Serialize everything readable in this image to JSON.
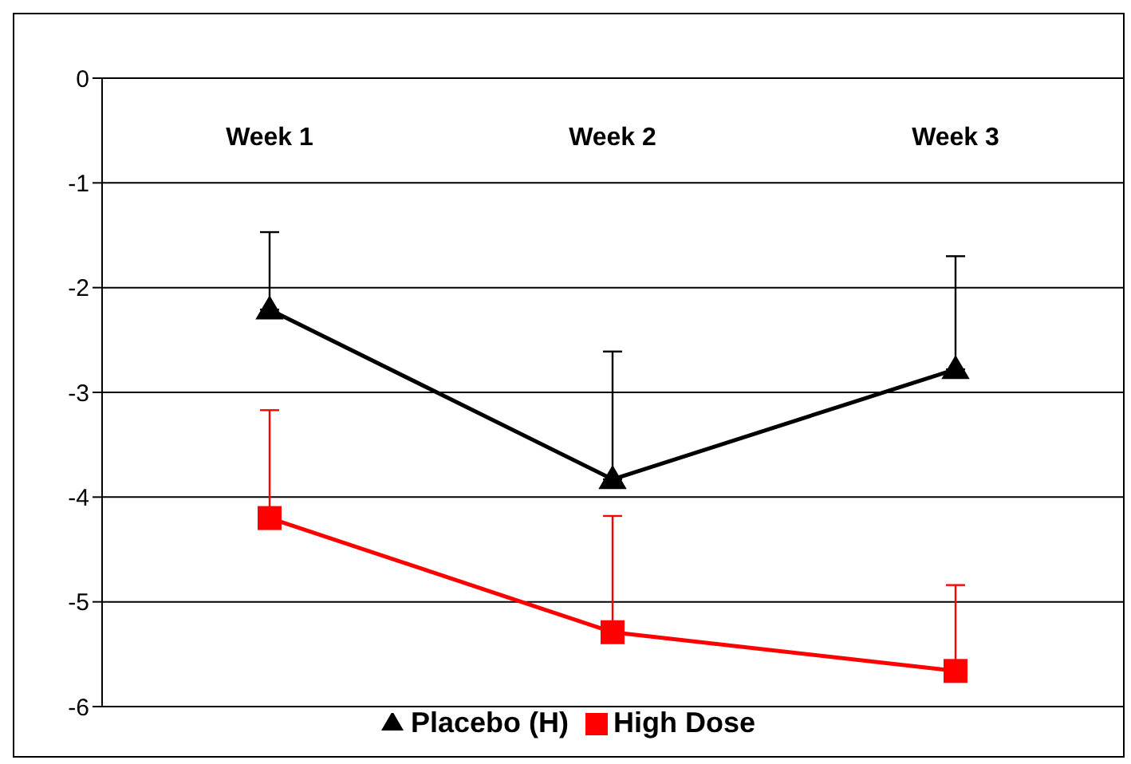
{
  "chart_data": {
    "type": "line",
    "categories": [
      "Week 1",
      "Week 2",
      "Week 3"
    ],
    "series": [
      {
        "name": "Placebo (H)",
        "color": "#000000",
        "marker": "triangle",
        "values": [
          -2.21,
          -3.83,
          -2.78
        ],
        "errors": [
          [
            -2.21,
            -1.47
          ],
          [
            -3.83,
            -2.61
          ],
          [
            -2.78,
            -1.7
          ]
        ]
      },
      {
        "name": "High Dose",
        "color": "#ff0000",
        "marker": "square",
        "values": [
          -4.2,
          -5.29,
          -5.66
        ],
        "errors": [
          [
            -4.2,
            -3.17
          ],
          [
            -5.29,
            -4.18
          ],
          [
            -5.66,
            -4.84
          ]
        ]
      }
    ],
    "ylim": [
      -6,
      0
    ],
    "yticks": [
      0,
      -1,
      -2,
      -3,
      -4,
      -5,
      -6
    ],
    "grid": "y",
    "legend": "bottom",
    "line_style": "solid"
  }
}
